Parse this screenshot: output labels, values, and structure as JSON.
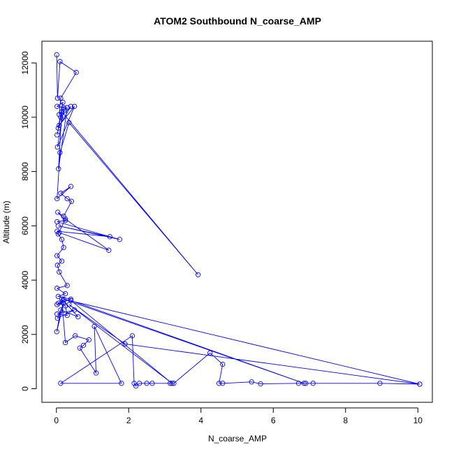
{
  "chart_data": {
    "type": "line",
    "title": "ATOM2 Southbound N_coarse_AMP",
    "xlabel": "N_coarse_AMP",
    "ylabel": "Altitude (m)",
    "xlim": [
      -0.4,
      10.4
    ],
    "ylim": [
      -500,
      12800
    ],
    "x_ticks": [
      0,
      2,
      4,
      6,
      8,
      10
    ],
    "y_ticks": [
      0,
      2000,
      4000,
      6000,
      8000,
      10000,
      12000
    ],
    "grid": false,
    "series": [
      {
        "color": "#0000ff",
        "marker": "open-circle",
        "points": [
          [
            0.01,
            12300
          ],
          [
            0.03,
            10700
          ],
          [
            0.1,
            12050
          ],
          [
            0.55,
            11650
          ],
          [
            0.12,
            10700
          ],
          [
            0.08,
            10100
          ],
          [
            0.2,
            10350
          ],
          [
            0.02,
            10400
          ],
          [
            0.18,
            10550
          ],
          [
            0.05,
            9600
          ],
          [
            0.4,
            10400
          ],
          [
            0.12,
            10000
          ],
          [
            0.02,
            9350
          ],
          [
            0.08,
            9700
          ],
          [
            0.5,
            10400
          ],
          [
            0.03,
            8900
          ],
          [
            0.2,
            10300
          ],
          [
            0.3,
            10350
          ],
          [
            0.06,
            8100
          ],
          [
            0.15,
            10200
          ],
          [
            3.92,
            4200
          ],
          [
            0.35,
            9800
          ],
          [
            0.1,
            8700
          ],
          [
            0.02,
            7000
          ],
          [
            0.4,
            7450
          ],
          [
            0.12,
            7200
          ],
          [
            0.3,
            7000
          ],
          [
            0.42,
            6900
          ],
          [
            0.2,
            6350
          ],
          [
            0.04,
            6500
          ],
          [
            0.25,
            6200
          ],
          [
            0.02,
            6150
          ],
          [
            1.75,
            5500
          ],
          [
            0.05,
            6000
          ],
          [
            1.48,
            5600
          ],
          [
            0.02,
            5800
          ],
          [
            0.08,
            5750
          ],
          [
            1.45,
            5100
          ],
          [
            0.25,
            6250
          ],
          [
            0.05,
            5700
          ],
          [
            0.15,
            5500
          ],
          [
            0.2,
            5200
          ],
          [
            0.02,
            4900
          ],
          [
            0.15,
            4700
          ],
          [
            0.03,
            4550
          ],
          [
            0.08,
            4300
          ],
          [
            0.3,
            3800
          ],
          [
            0.02,
            3700
          ],
          [
            0.25,
            3500
          ],
          [
            0.05,
            3400
          ],
          [
            0.4,
            3300
          ],
          [
            0.02,
            3100
          ],
          [
            0.18,
            3250
          ],
          [
            0.06,
            3150
          ],
          [
            0.25,
            3050
          ],
          [
            0.3,
            2700
          ],
          [
            0.02,
            2750
          ],
          [
            0.5,
            2900
          ],
          [
            0.03,
            2600
          ],
          [
            0.2,
            3150
          ],
          [
            0.01,
            2100
          ],
          [
            0.12,
            2900
          ],
          [
            0.6,
            2650
          ],
          [
            0.15,
            3300
          ],
          [
            0.25,
            1700
          ],
          [
            0.52,
            1950
          ],
          [
            0.9,
            1800
          ],
          [
            0.75,
            1600
          ],
          [
            0.65,
            1500
          ],
          [
            1.1,
            580
          ],
          [
            1.05,
            2300
          ],
          [
            1.8,
            200
          ],
          [
            0.12,
            200
          ],
          [
            2.1,
            1950
          ],
          [
            2.15,
            200
          ],
          [
            2.2,
            100
          ],
          [
            2.3,
            200
          ],
          [
            2.5,
            200
          ],
          [
            2.65,
            200
          ],
          [
            3.15,
            200
          ],
          [
            3.25,
            200
          ],
          [
            4.25,
            1320
          ],
          [
            4.6,
            900
          ],
          [
            4.5,
            200
          ],
          [
            4.6,
            200
          ],
          [
            5.4,
            250
          ],
          [
            5.65,
            180
          ],
          [
            6.7,
            200
          ],
          [
            6.9,
            200
          ],
          [
            7.1,
            200
          ],
          [
            8.95,
            200
          ],
          [
            10.05,
            170
          ],
          [
            1.9,
            1650
          ],
          [
            0.35,
            3100
          ],
          [
            3.2,
            200
          ],
          [
            0.4,
            3250
          ],
          [
            6.85,
            200
          ],
          [
            0.2,
            3300
          ],
          [
            10.05,
            170
          ]
        ]
      }
    ]
  }
}
